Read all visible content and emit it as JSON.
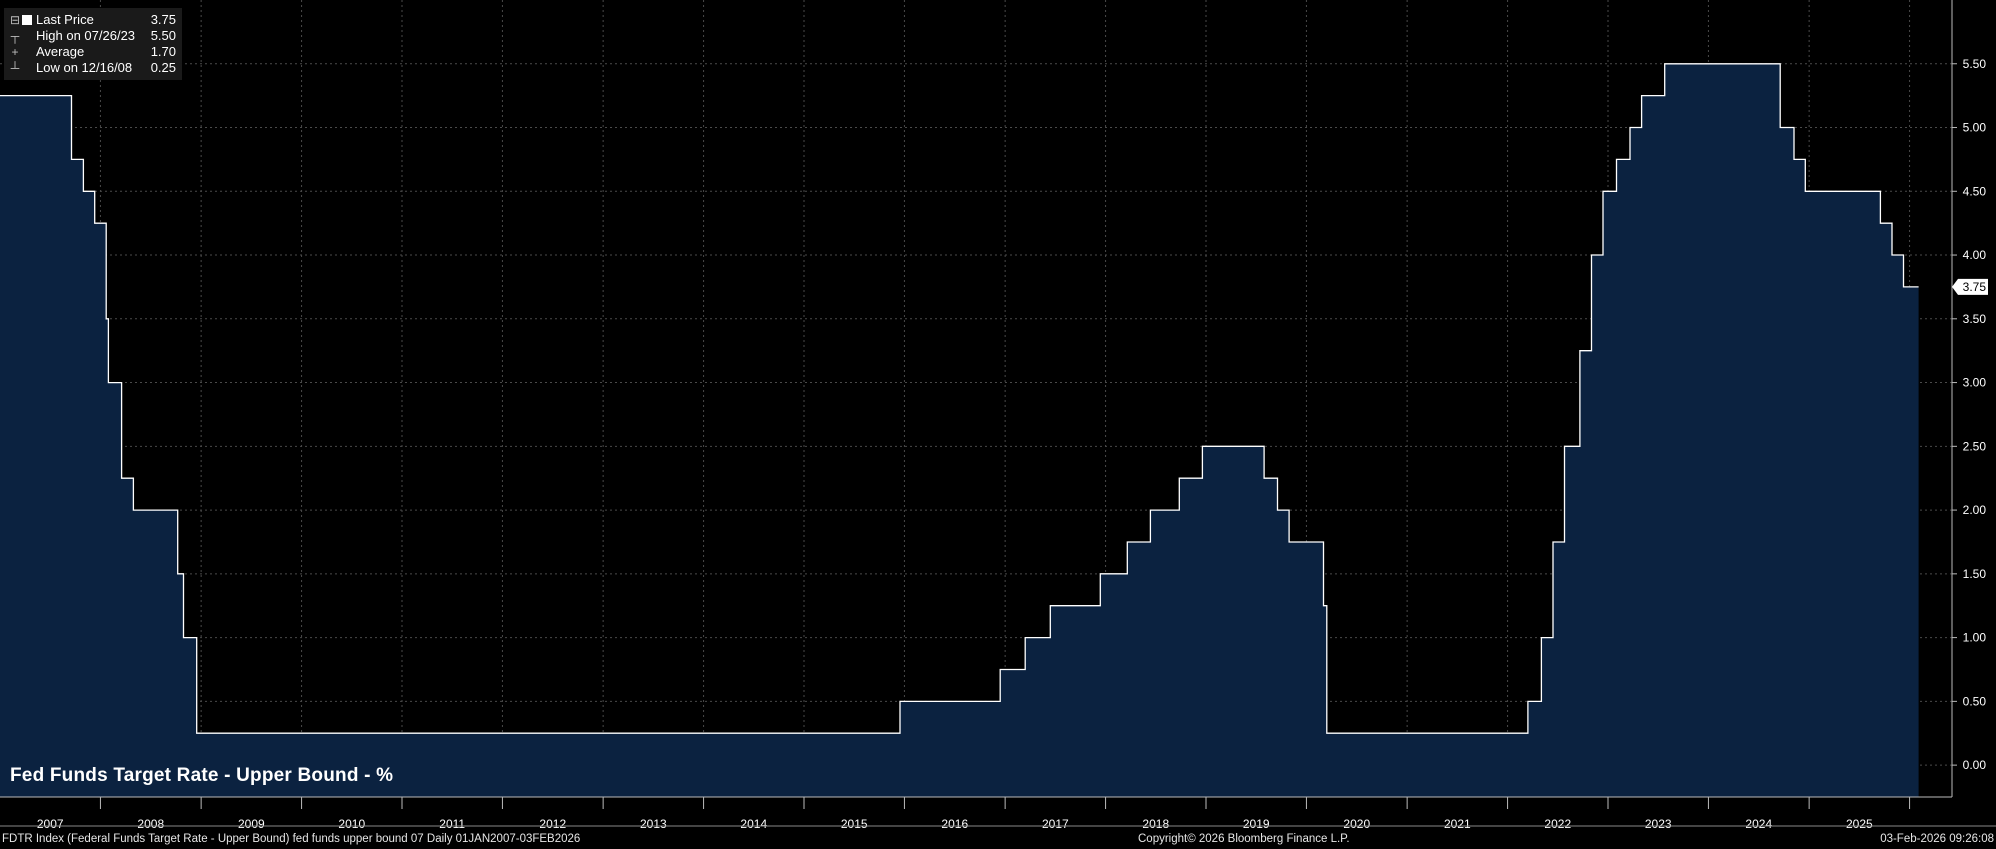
{
  "legend": {
    "rows": [
      {
        "glyph": "⊟",
        "label": "Last Price",
        "value": "3.75",
        "swatch": true
      },
      {
        "glyph": "┬",
        "label": "High on 07/26/23",
        "value": "5.50",
        "swatch": false
      },
      {
        "glyph": "+",
        "label": "Average",
        "value": "1.70",
        "swatch": false
      },
      {
        "glyph": "┴",
        "label": "Low on 12/16/08",
        "value": "0.25",
        "swatch": false
      }
    ]
  },
  "chart_data": {
    "type": "area",
    "title": "Fed Funds Target Rate - Upper Bound - %",
    "last_value_label": "3.75",
    "ylim": [
      -0.25,
      6.0
    ],
    "y_ticks": [
      "0.00",
      "0.50",
      "1.00",
      "1.50",
      "2.00",
      "2.50",
      "3.00",
      "3.50",
      "4.00",
      "4.50",
      "5.00",
      "5.50"
    ],
    "x_range": [
      "2007-01-01",
      "2026-02-03"
    ],
    "x_tick_labels": [
      "2007",
      "2008",
      "2009",
      "2010",
      "2011",
      "2012",
      "2013",
      "2014",
      "2015",
      "2016",
      "2017",
      "2018",
      "2019",
      "2020",
      "2021",
      "2022",
      "2023",
      "2024",
      "2025"
    ],
    "grid": true,
    "legend_position": "top-left",
    "colors": {
      "line": "#ffffff",
      "fill": "#0b2240",
      "grid": "#4a4a4a",
      "background": "#000000"
    },
    "series": [
      {
        "name": "Last Price",
        "step_points": [
          {
            "date": "2007-01-01",
            "value": 5.25
          },
          {
            "date": "2007-09-18",
            "value": 4.75
          },
          {
            "date": "2007-10-31",
            "value": 4.5
          },
          {
            "date": "2007-12-11",
            "value": 4.25
          },
          {
            "date": "2008-01-22",
            "value": 3.5
          },
          {
            "date": "2008-01-30",
            "value": 3.0
          },
          {
            "date": "2008-03-18",
            "value": 2.25
          },
          {
            "date": "2008-04-30",
            "value": 2.0
          },
          {
            "date": "2008-10-08",
            "value": 1.5
          },
          {
            "date": "2008-10-29",
            "value": 1.0
          },
          {
            "date": "2008-12-16",
            "value": 0.25
          },
          {
            "date": "2015-12-16",
            "value": 0.5
          },
          {
            "date": "2016-12-14",
            "value": 0.75
          },
          {
            "date": "2017-03-15",
            "value": 1.0
          },
          {
            "date": "2017-06-14",
            "value": 1.25
          },
          {
            "date": "2017-12-13",
            "value": 1.5
          },
          {
            "date": "2018-03-21",
            "value": 1.75
          },
          {
            "date": "2018-06-13",
            "value": 2.0
          },
          {
            "date": "2018-09-26",
            "value": 2.25
          },
          {
            "date": "2018-12-19",
            "value": 2.5
          },
          {
            "date": "2019-07-31",
            "value": 2.25
          },
          {
            "date": "2019-09-18",
            "value": 2.0
          },
          {
            "date": "2019-10-30",
            "value": 1.75
          },
          {
            "date": "2020-03-03",
            "value": 1.25
          },
          {
            "date": "2020-03-15",
            "value": 0.25
          },
          {
            "date": "2022-03-16",
            "value": 0.5
          },
          {
            "date": "2022-05-04",
            "value": 1.0
          },
          {
            "date": "2022-06-15",
            "value": 1.75
          },
          {
            "date": "2022-07-27",
            "value": 2.5
          },
          {
            "date": "2022-09-21",
            "value": 3.25
          },
          {
            "date": "2022-11-02",
            "value": 4.0
          },
          {
            "date": "2022-12-14",
            "value": 4.5
          },
          {
            "date": "2023-02-01",
            "value": 4.75
          },
          {
            "date": "2023-03-22",
            "value": 5.0
          },
          {
            "date": "2023-05-03",
            "value": 5.25
          },
          {
            "date": "2023-07-26",
            "value": 5.5
          },
          {
            "date": "2024-09-18",
            "value": 5.0
          },
          {
            "date": "2024-11-07",
            "value": 4.75
          },
          {
            "date": "2024-12-18",
            "value": 4.5
          },
          {
            "date": "2025-09-17",
            "value": 4.25
          },
          {
            "date": "2025-10-29",
            "value": 4.0
          },
          {
            "date": "2025-12-10",
            "value": 3.75
          },
          {
            "date": "2026-02-03",
            "value": 3.75
          }
        ]
      }
    ]
  },
  "footer": {
    "left": "FDTR Index (Federal Funds Target Rate - Upper Bound) fed funds upper bound 07 Daily 01JAN2007-03FEB2026",
    "center": "Copyright© 2026 Bloomberg Finance L.P.",
    "right": "03-Feb-2026 09:26:08"
  }
}
